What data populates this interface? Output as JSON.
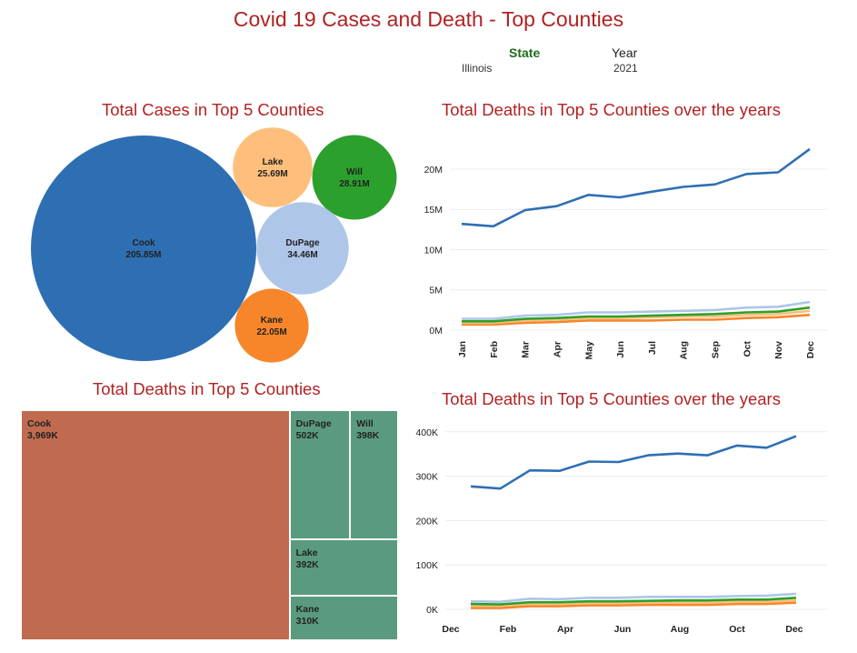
{
  "title": "Covid 19 Cases and Death - Top Counties",
  "filters": {
    "state": {
      "label": "State",
      "value": "Illinois"
    },
    "year": {
      "label": "Year",
      "value": "2021"
    }
  },
  "colors": {
    "title": "#b22222",
    "Cook": "#2e6fb3",
    "Lake": "#fdbf7b",
    "Will": "#2ca02c",
    "DuPage": "#aec6e8",
    "Kane": "#f7862a",
    "treemap_cook": "#c06b4f",
    "treemap_other": "#5a9b80"
  },
  "chart_data": [
    {
      "type": "bubble",
      "title": "Total Cases in Top 5 Counties",
      "items": [
        {
          "name": "Cook",
          "value": 205.85,
          "label": "205.85M"
        },
        {
          "name": "Lake",
          "value": 25.69,
          "label": "25.69M"
        },
        {
          "name": "Will",
          "value": 28.91,
          "label": "28.91M"
        },
        {
          "name": "DuPage",
          "value": 34.46,
          "label": "34.46M"
        },
        {
          "name": "Kane",
          "value": 22.05,
          "label": "22.05M"
        }
      ]
    },
    {
      "type": "line",
      "title": "Total Deaths in Top 5 Counties over the years",
      "categories": [
        "Jan",
        "Feb",
        "Mar",
        "Apr",
        "May",
        "Jun",
        "Jul",
        "Aug",
        "Sep",
        "Oct",
        "Nov",
        "Dec"
      ],
      "yticks": [
        0,
        5000000,
        10000000,
        15000000,
        20000000
      ],
      "ytick_labels": [
        "0M",
        "5M",
        "10M",
        "15M",
        "20M"
      ],
      "ylim": [
        0,
        23500000
      ],
      "series": [
        {
          "color": "#2e6fb3",
          "values": [
            13200000,
            12900000,
            14900000,
            15400000,
            16800000,
            16500000,
            17200000,
            17800000,
            18100000,
            19400000,
            19600000,
            22500000
          ]
        },
        {
          "color": "#aec6e8",
          "values": [
            1400000,
            1400000,
            1800000,
            1900000,
            2200000,
            2200000,
            2300000,
            2400000,
            2500000,
            2800000,
            2900000,
            3500000
          ]
        },
        {
          "color": "#2ca02c",
          "values": [
            1100000,
            1100000,
            1400000,
            1500000,
            1700000,
            1700000,
            1800000,
            1900000,
            2000000,
            2200000,
            2300000,
            2800000
          ]
        },
        {
          "color": "#fdbf7b",
          "values": [
            900000,
            900000,
            1200000,
            1300000,
            1500000,
            1500000,
            1600000,
            1700000,
            1700000,
            1900000,
            2000000,
            2400000
          ]
        },
        {
          "color": "#f7862a",
          "values": [
            700000,
            700000,
            900000,
            1000000,
            1200000,
            1200000,
            1200000,
            1300000,
            1300000,
            1500000,
            1600000,
            1900000
          ]
        }
      ]
    },
    {
      "type": "treemap",
      "title": "Total Deaths in Top 5 Counties",
      "items": [
        {
          "name": "Cook",
          "value": 3969,
          "label": "3,969K"
        },
        {
          "name": "DuPage",
          "value": 502,
          "label": "502K"
        },
        {
          "name": "Will",
          "value": 398,
          "label": "398K"
        },
        {
          "name": "Lake",
          "value": 392,
          "label": "392K"
        },
        {
          "name": "Kane",
          "value": 310,
          "label": "310K"
        }
      ]
    },
    {
      "type": "line",
      "title": "Total Deaths in Top 5 Counties over the years",
      "tick_labels": [
        "Dec",
        "Feb",
        "Apr",
        "Jun",
        "Aug",
        "Oct",
        "Dec"
      ],
      "yticks": [
        0,
        100000,
        200000,
        300000,
        400000
      ],
      "ytick_labels": [
        "0K",
        "100K",
        "200K",
        "300K",
        "400K"
      ],
      "ylim": [
        0,
        420000
      ],
      "series": [
        {
          "color": "#2e6fb3",
          "values": [
            277000,
            272000,
            313000,
            312000,
            333000,
            332000,
            347000,
            351000,
            347000,
            369000,
            364000,
            390000
          ]
        },
        {
          "color": "#aec6e8",
          "values": [
            18000,
            17000,
            24000,
            23000,
            26000,
            26000,
            28000,
            28000,
            28000,
            30000,
            31000,
            35000
          ]
        },
        {
          "color": "#2ca02c",
          "values": [
            12000,
            11000,
            16000,
            16000,
            18000,
            18000,
            19000,
            20000,
            20000,
            22000,
            22000,
            26000
          ]
        },
        {
          "color": "#fdbf7b",
          "values": [
            8000,
            8000,
            12000,
            12000,
            14000,
            14000,
            15000,
            15000,
            15000,
            17000,
            17000,
            20000
          ]
        },
        {
          "color": "#f7862a",
          "values": [
            3000,
            3000,
            7000,
            7000,
            9000,
            9000,
            10000,
            10000,
            10000,
            12000,
            12000,
            15000
          ]
        }
      ]
    }
  ]
}
